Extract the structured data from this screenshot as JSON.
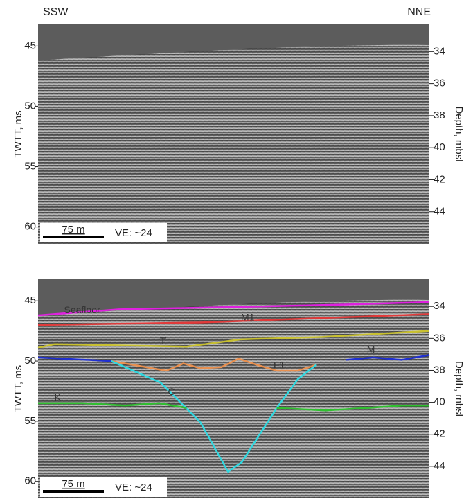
{
  "chart_data": [
    {
      "type": "line",
      "direction_left": "SSW",
      "direction_right": "NNE",
      "ylabel": "TWTT, ms",
      "y2label": "Depth, mbsl",
      "xlim": [
        0,
        482
      ],
      "ylim": [
        43.2,
        61.4
      ],
      "yticks": [
        45,
        50,
        55,
        60
      ],
      "y2lim": [
        32.3,
        46
      ],
      "y2ticks": [
        34,
        36,
        38,
        40,
        42,
        44
      ],
      "scale_bar": "75 m",
      "ve": "VE: ~24",
      "series": []
    },
    {
      "type": "line",
      "ylabel": "TWTT, ms",
      "y2label": "Depth, mbsl",
      "xlim": [
        0,
        482
      ],
      "ylim": [
        43.2,
        61.4
      ],
      "yticks": [
        45,
        50,
        55,
        60
      ],
      "y2lim": [
        32.3,
        46
      ],
      "y2ticks": [
        34,
        36,
        38,
        40,
        42,
        44
      ],
      "scale_bar": "75 m",
      "ve": "VE: ~24",
      "series": [
        {
          "name": "Seafloor",
          "color": "#e020e0",
          "x": [
            0,
            100,
            250,
            380,
            482
          ],
          "values": [
            46.2,
            45.7,
            45.5,
            45.3,
            45.1
          ]
        },
        {
          "name": "M1",
          "color": "#e03a3a",
          "x": [
            0,
            200,
            482
          ],
          "values": [
            47.0,
            46.8,
            46.1
          ]
        },
        {
          "name": "T",
          "color": "#c8c030",
          "x": [
            0,
            20,
            100,
            183,
            250,
            350,
            482
          ],
          "values": [
            48.9,
            48.6,
            48.7,
            48.8,
            48.2,
            48.0,
            47.5
          ]
        },
        {
          "name": "M",
          "color": "#2030d0",
          "x": [
            0,
            90,
            343,
            379,
            413,
            448,
            482
          ],
          "values": [
            49.7,
            50.0,
            null,
            49.9,
            49.7,
            49.9,
            49.5
          ]
        },
        {
          "name": "F1",
          "color": "#e89050",
          "x": [
            90,
            124,
            158,
            179,
            200,
            226,
            247,
            269,
            294,
            320,
            343
          ],
          "values": [
            50.0,
            50.4,
            50.8,
            50.2,
            50.6,
            50.5,
            49.8,
            50.3,
            50.8,
            50.8,
            50.3
          ]
        },
        {
          "name": "C",
          "color": "#30d8e0",
          "x": [
            90,
            151,
            200,
            234,
            251,
            294,
            320,
            343
          ],
          "values": [
            50.0,
            51.8,
            55.1,
            59.2,
            58.4,
            53.9,
            51.5,
            50.3
          ]
        },
        {
          "name": "K",
          "color": "#30c030",
          "x": [
            0,
            55,
            107,
            149,
            183,
            250,
            294,
            354,
            405,
            448,
            482
          ],
          "values": [
            53.5,
            53.5,
            53.7,
            53.5,
            53.9,
            null,
            53.9,
            54.1,
            53.9,
            53.7,
            53.7
          ]
        }
      ]
    }
  ]
}
